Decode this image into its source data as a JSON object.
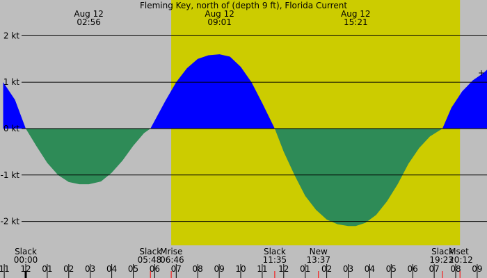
{
  "chart_data": {
    "type": "area",
    "title": "Fleming Key, north of (depth 9 ft), Florida Current",
    "xlabel": "",
    "ylabel": "",
    "x_unit": "hour of day",
    "xlim": [
      -1.05,
      21.533
    ],
    "ylim": [
      -2.5,
      2.5
    ],
    "grid": true,
    "colors": {
      "background": "#bebebe",
      "daylight": "#cccc00",
      "flood": "#0000ff",
      "ebb": "#2e8b57",
      "grid": "#000000",
      "hour_tick": "#000000",
      "event_tick": "#ff0000"
    },
    "y_ticks": [
      {
        "value": 2,
        "label": "2 kt"
      },
      {
        "value": 1,
        "label": "1 kt"
      },
      {
        "value": 0,
        "label": "0 kt"
      },
      {
        "value": -1,
        "label": "-1 kt"
      },
      {
        "value": -2,
        "label": "-2 kt"
      }
    ],
    "x_ticks": [
      {
        "hour": -1,
        "label": "11"
      },
      {
        "hour": 0,
        "label": "12"
      },
      {
        "hour": 1,
        "label": "01"
      },
      {
        "hour": 2,
        "label": "02"
      },
      {
        "hour": 3,
        "label": "03"
      },
      {
        "hour": 4,
        "label": "04"
      },
      {
        "hour": 5,
        "label": "05"
      },
      {
        "hour": 6,
        "label": "06"
      },
      {
        "hour": 7,
        "label": "07"
      },
      {
        "hour": 8,
        "label": "08"
      },
      {
        "hour": 9,
        "label": "09"
      },
      {
        "hour": 10,
        "label": "10"
      },
      {
        "hour": 11,
        "label": "11"
      },
      {
        "hour": 12,
        "label": "12"
      },
      {
        "hour": 13,
        "label": "01"
      },
      {
        "hour": 14,
        "label": "02"
      },
      {
        "hour": 15,
        "label": "03"
      },
      {
        "hour": 16,
        "label": "04"
      },
      {
        "hour": 17,
        "label": "05"
      },
      {
        "hour": 18,
        "label": "06"
      },
      {
        "hour": 19,
        "label": "07"
      },
      {
        "hour": 20,
        "label": "08"
      },
      {
        "hour": 21,
        "label": "09"
      }
    ],
    "daylight": {
      "start": 6.767,
      "end": 20.2
    },
    "series": [
      {
        "x": [
          -1.05,
          -0.5,
          0.0,
          0.5,
          1.0,
          1.5,
          2.0,
          2.5,
          2.933,
          3.5,
          4.0,
          4.5,
          5.0,
          5.5,
          5.8,
          6.5,
          7.0,
          7.5,
          8.0,
          8.5,
          9.017,
          9.5,
          10.0,
          10.5,
          11.0,
          11.583,
          12.0,
          12.5,
          13.0,
          13.5,
          14.0,
          14.5,
          15.0,
          15.35,
          15.8,
          16.3,
          16.8,
          17.3,
          17.8,
          18.3,
          18.8,
          19.383,
          19.8,
          20.3,
          20.8,
          21.3,
          21.533
        ],
        "y": [
          1.0,
          0.62,
          0.0,
          -0.38,
          -0.74,
          -1.0,
          -1.15,
          -1.2,
          -1.2,
          -1.14,
          -0.95,
          -0.69,
          -0.37,
          -0.1,
          0.0,
          0.6,
          1.0,
          1.3,
          1.5,
          1.58,
          1.6,
          1.55,
          1.33,
          1.0,
          0.55,
          0.0,
          -0.5,
          -1.0,
          -1.45,
          -1.75,
          -1.96,
          -2.06,
          -2.1,
          -2.1,
          -2.03,
          -1.86,
          -1.57,
          -1.2,
          -0.76,
          -0.42,
          -0.17,
          0.0,
          0.45,
          0.8,
          1.04,
          1.2,
          1.3
        ]
      }
    ],
    "top_labels": [
      {
        "hour": 2.933,
        "date": "Aug 12",
        "time": "02:56"
      },
      {
        "hour": 9.017,
        "date": "Aug 12",
        "time": "09:01"
      },
      {
        "hour": 15.35,
        "date": "Aug 12",
        "time": "15:21"
      }
    ],
    "events": [
      {
        "hour": 0.0,
        "name": "Slack",
        "time": "00:00"
      },
      {
        "hour": 5.8,
        "name": "Slack",
        "time": "05:48"
      },
      {
        "hour": 6.767,
        "name": "Mrise",
        "time": "06:46"
      },
      {
        "hour": 11.583,
        "name": "Slack",
        "time": "11:35"
      },
      {
        "hour": 13.617,
        "name": "New",
        "time": "13:37"
      },
      {
        "hour": 19.383,
        "name": "Slack",
        "time": "19:23"
      },
      {
        "hour": 20.2,
        "name": "Mset",
        "time": "20:12"
      }
    ],
    "event_tick_hours": [
      5.8,
      6.767,
      11.583,
      13.617,
      19.383,
      20.2
    ],
    "annotations": [
      {
        "hour": 21.2,
        "value": 1.2,
        "text": "+"
      }
    ]
  }
}
